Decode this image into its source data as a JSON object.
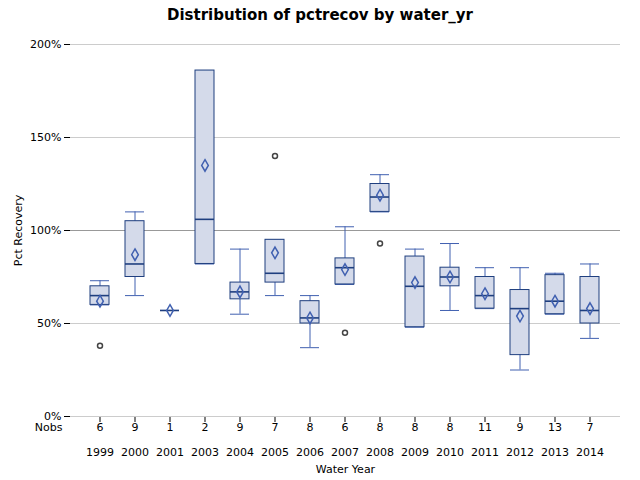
{
  "chart_data": {
    "type": "box",
    "title": "Distribution of pctrecov by water_yr",
    "xlabel": "Water Year",
    "ylabel": "Pct Recovery",
    "categories": [
      "1999",
      "2000",
      "2001",
      "2003",
      "2004",
      "2005",
      "2006",
      "2007",
      "2008",
      "2009",
      "2010",
      "2011",
      "2012",
      "2013",
      "2014"
    ],
    "q1": [
      0.6,
      0.75,
      0.57,
      0.82,
      0.63,
      0.72,
      0.5,
      0.71,
      1.1,
      0.48,
      0.7,
      0.58,
      0.33,
      0.55,
      0.5
    ],
    "median": [
      0.65,
      0.82,
      0.57,
      1.06,
      0.67,
      0.77,
      0.53,
      0.8,
      1.18,
      0.7,
      0.75,
      0.65,
      0.58,
      0.62,
      0.57
    ],
    "q3": [
      0.7,
      1.05,
      0.57,
      1.86,
      0.72,
      0.95,
      0.62,
      0.85,
      1.25,
      0.86,
      0.8,
      0.75,
      0.68,
      0.76,
      0.75
    ],
    "whislo": [
      0.6,
      0.65,
      0.57,
      0.82,
      0.55,
      0.65,
      0.37,
      0.71,
      1.1,
      0.48,
      0.57,
      0.58,
      0.25,
      0.55,
      0.42
    ],
    "whishi": [
      0.73,
      1.1,
      0.57,
      1.86,
      0.9,
      0.95,
      0.65,
      1.02,
      1.3,
      0.9,
      0.93,
      0.8,
      0.8,
      0.77,
      0.82
    ],
    "means": [
      0.62,
      0.87,
      0.57,
      1.35,
      0.67,
      0.88,
      0.53,
      0.79,
      1.19,
      0.72,
      0.75,
      0.66,
      0.54,
      0.62,
      0.58
    ],
    "fliers": [
      [
        0.38
      ],
      [],
      [],
      [],
      [],
      [
        1.4
      ],
      [],
      [
        0.45
      ],
      [
        0.93
      ],
      [],
      [],
      [],
      [],
      [],
      []
    ],
    "nobs_label": "Nobs",
    "nobs": [
      6,
      9,
      1,
      2,
      9,
      7,
      8,
      6,
      8,
      8,
      8,
      11,
      9,
      13,
      7
    ],
    "reference_line": 1.0,
    "ylim": [
      0.0,
      2.0
    ],
    "yticks": [
      {
        "value": 0.0,
        "label": "0%"
      },
      {
        "value": 0.5,
        "label": "50%"
      },
      {
        "value": 1.0,
        "label": "100%"
      },
      {
        "value": 1.5,
        "label": "150%"
      },
      {
        "value": 2.0,
        "label": "200%"
      }
    ],
    "grid": true,
    "color": "#d4daea"
  }
}
